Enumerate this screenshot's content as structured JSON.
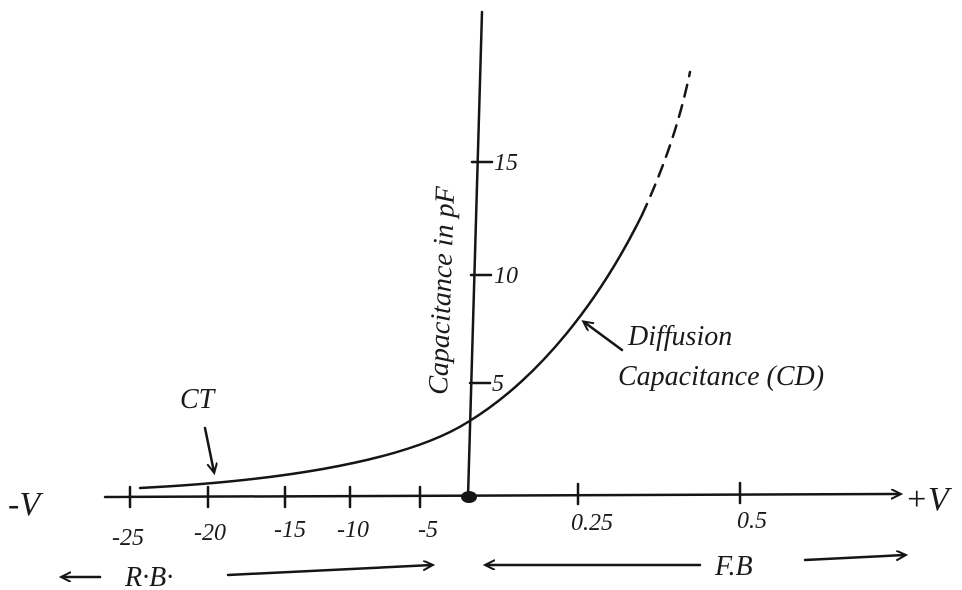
{
  "axes": {
    "x_left": "-V",
    "x_right": "+V",
    "y_label": "Capacitance in pF"
  },
  "y_ticks": [
    "5",
    "10",
    "15"
  ],
  "x_ticks": [
    "-25",
    "-20",
    "-15",
    "-10",
    "-5",
    "0.25",
    "0.5"
  ],
  "labels": {
    "transition": "CT",
    "diffusion_1": "Diffusion",
    "diffusion_2": "Capacitance (CD)",
    "reverse_bias": "R·B·",
    "forward_bias": "F.B"
  }
}
